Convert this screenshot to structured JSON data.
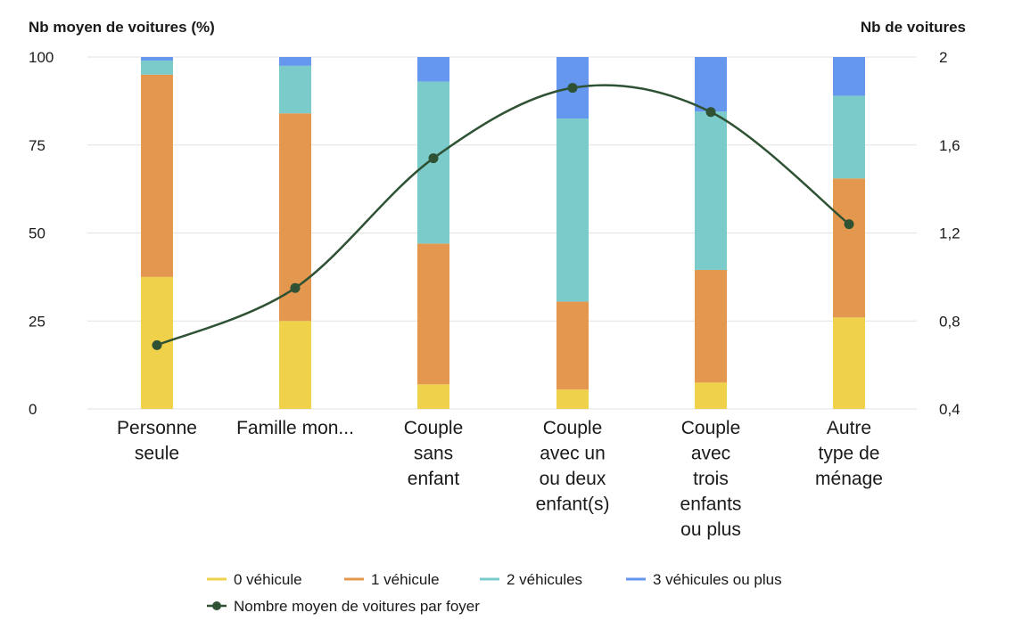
{
  "chart_data": {
    "type": "bar",
    "stacked": true,
    "categories": [
      [
        "Personne",
        "seule"
      ],
      [
        "Famille mon..."
      ],
      [
        "Couple",
        "sans",
        "enfant"
      ],
      [
        "Couple",
        "avec un",
        "ou deux",
        "enfant(s)"
      ],
      [
        "Couple",
        "avec",
        "trois",
        "enfants",
        "ou plus"
      ],
      [
        "Autre",
        "type de",
        "ménage"
      ]
    ],
    "y_left": {
      "title": "Nb moyen de voitures (%)",
      "ticks": [
        "100",
        "75",
        "50",
        "25",
        "0"
      ],
      "tick_values": [
        100,
        75,
        50,
        25,
        0
      ],
      "min": 0,
      "max": 100
    },
    "y_right": {
      "title": "Nb de voitures",
      "ticks": [
        "2",
        "1,6",
        "1,2",
        "0,8",
        "0,4"
      ],
      "tick_values": [
        2,
        1.6,
        1.2,
        0.8,
        0.4
      ],
      "min": 0.4,
      "max": 2
    },
    "series": [
      {
        "name": "0 véhicule",
        "color": "#f0d14a",
        "values": [
          37.5,
          25,
          7,
          5.5,
          7.5,
          26
        ]
      },
      {
        "name": "1 véhicule",
        "color": "#e4984f",
        "values": [
          57.5,
          59,
          40,
          25,
          32,
          39.5
        ]
      },
      {
        "name": "2 véhicules",
        "color": "#7bcbcb",
        "values": [
          4,
          13.5,
          46,
          52,
          45,
          23.5
        ]
      },
      {
        "name": "3 véhicules ou plus",
        "color": "#6597ee",
        "values": [
          1,
          2.5,
          7,
          17.5,
          15.5,
          11
        ]
      }
    ],
    "line": {
      "name": "Nombre moyen de voitures par foyer",
      "color": "#2e5233",
      "axis": "right",
      "values": [
        0.69,
        0.95,
        1.54,
        1.86,
        1.75,
        1.24
      ]
    },
    "grid": true,
    "legend_position": "bottom"
  }
}
